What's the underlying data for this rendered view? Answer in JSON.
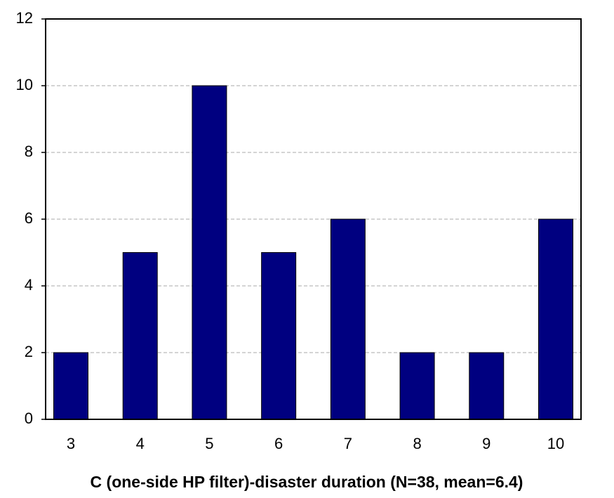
{
  "chart_data": {
    "type": "bar",
    "xlabel": "C (one-side HP filter)-disaster duration (N=38, mean=6.4)",
    "categories": [
      "3",
      "4",
      "5",
      "6",
      "7",
      "8",
      "9",
      "10"
    ],
    "values": [
      2,
      5,
      10,
      5,
      6,
      2,
      2,
      6
    ],
    "color": "#000080",
    "ylim": [
      0,
      12
    ],
    "yticks": [
      0,
      2,
      4,
      6,
      8,
      10,
      12
    ],
    "grid": true
  }
}
